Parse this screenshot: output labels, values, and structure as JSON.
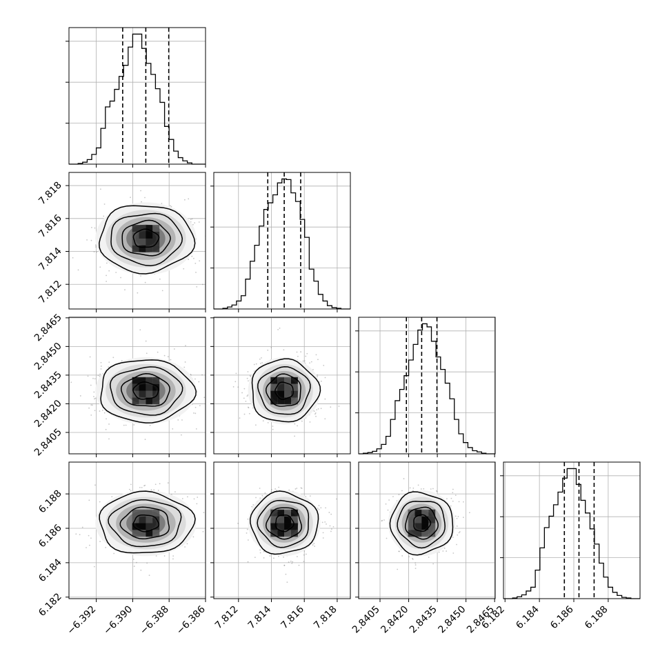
{
  "chart_data": {
    "type": "corner",
    "grid": true,
    "colors": {
      "line": "#000000",
      "grid": "#b0b0b0",
      "scatter": "#7f7f7f"
    },
    "params": [
      {
        "key": "p0",
        "range": [
          -6.3935,
          -6.386
        ],
        "ticks": [
          -6.392,
          -6.39,
          -6.388,
          -6.386
        ],
        "tick_labels": [
          "−6.392",
          "−6.390",
          "−6.388",
          "−6.386"
        ],
        "quantiles": [
          -6.39055,
          -6.38928,
          -6.38802
        ],
        "hist": {
          "edges": [
            -6.3935,
            -6.39325,
            -6.393,
            -6.39275,
            -6.3925,
            -6.39225,
            -6.392,
            -6.39175,
            -6.3915,
            -6.39125,
            -6.391,
            -6.39075,
            -6.3905,
            -6.39025,
            -6.39,
            -6.38975,
            -6.3895,
            -6.38925,
            -6.389,
            -6.38875,
            -6.3885,
            -6.38825,
            -6.388,
            -6.38775,
            -6.3875,
            -6.38725,
            -6.387,
            -6.38675,
            -6.3865,
            -6.38625,
            -6.386
          ],
          "counts": [
            0,
            0,
            1,
            3,
            7,
            15,
            25,
            55,
            88,
            97,
            115,
            135,
            152,
            180,
            200,
            200,
            178,
            155,
            138,
            116,
            95,
            58,
            38,
            20,
            10,
            5,
            2,
            0,
            0,
            0
          ]
        }
      },
      {
        "key": "p1",
        "range": [
          7.8105,
          7.8188
        ],
        "ticks": [
          7.812,
          7.814,
          7.816,
          7.818
        ],
        "tick_labels": [
          "7.812",
          "7.814",
          "7.816",
          "7.818"
        ],
        "quantiles": [
          7.81378,
          7.81478,
          7.81578
        ],
        "hist": {
          "edges": [
            7.8105,
            7.81078,
            7.81105,
            7.81133,
            7.8116,
            7.81188,
            7.81216,
            7.81243,
            7.81271,
            7.81298,
            7.81326,
            7.81354,
            7.81381,
            7.81409,
            7.81437,
            7.81464,
            7.81492,
            7.81519,
            7.81547,
            7.81575,
            7.81602,
            7.8163,
            7.81658,
            7.81685,
            7.81713,
            7.8174,
            7.81768,
            7.81796,
            7.81823,
            7.81851,
            7.8188
          ],
          "counts": [
            0,
            0,
            1,
            3,
            6,
            12,
            20,
            45,
            72,
            96,
            125,
            150,
            160,
            172,
            190,
            196,
            195,
            175,
            162,
            135,
            108,
            60,
            42,
            22,
            12,
            5,
            2,
            1,
            0,
            0
          ]
        }
      },
      {
        "key": "p2",
        "range": [
          2.83938,
          2.84653
        ],
        "ticks": [
          2.8405,
          2.842,
          2.8435,
          2.845,
          2.8465
        ],
        "tick_labels": [
          "2.8405",
          "2.8420",
          "2.8435",
          "2.8450",
          "2.8465"
        ],
        "quantiles": [
          2.84188,
          2.84268,
          2.84348
        ],
        "hist": {
          "edges": [
            2.83938,
            2.83962,
            2.83986,
            2.8401,
            2.84033,
            2.84057,
            2.84081,
            2.84105,
            2.84129,
            2.84153,
            2.84176,
            2.842,
            2.84224,
            2.84248,
            2.84272,
            2.84296,
            2.84319,
            2.84343,
            2.84367,
            2.84391,
            2.84415,
            2.84439,
            2.84462,
            2.84486,
            2.8451,
            2.84534,
            2.84558,
            2.84582,
            2.84605,
            2.84629,
            2.84653
          ],
          "counts": [
            0,
            1,
            2,
            4,
            8,
            15,
            28,
            55,
            85,
            103,
            125,
            150,
            175,
            198,
            208,
            203,
            180,
            155,
            135,
            113,
            88,
            55,
            32,
            18,
            10,
            5,
            3,
            1,
            0,
            0
          ]
        }
      },
      {
        "key": "p3",
        "range": [
          6.18191,
          6.18985
        ],
        "ticks": [
          6.182,
          6.184,
          6.186,
          6.188
        ],
        "tick_labels": [
          "6.182",
          "6.184",
          "6.186",
          "6.188"
        ],
        "quantiles": [
          6.18545,
          6.1863,
          6.18718
        ],
        "hist": {
          "edges": [
            6.18191,
            6.18217,
            6.18244,
            6.1827,
            6.18297,
            6.18323,
            6.1835,
            6.18376,
            6.18403,
            6.18429,
            6.18456,
            6.18482,
            6.18508,
            6.18535,
            6.18561,
            6.18588,
            6.18614,
            6.18641,
            6.18667,
            6.18694,
            6.1872,
            6.18747,
            6.18773,
            6.18799,
            6.18826,
            6.18852,
            6.18879,
            6.18905,
            6.18932,
            6.18958,
            6.18985
          ],
          "counts": [
            0,
            0,
            1,
            3,
            6,
            12,
            18,
            45,
            80,
            112,
            130,
            148,
            168,
            190,
            205,
            205,
            180,
            155,
            135,
            110,
            86,
            56,
            34,
            18,
            10,
            5,
            2,
            1,
            0,
            0
          ]
        }
      }
    ],
    "pairs": [
      {
        "row": 1,
        "col": 0,
        "center": [
          -6.38928,
          7.81478
        ],
        "spread": [
          0.00126,
          0.001
        ]
      },
      {
        "row": 2,
        "col": 0,
        "center": [
          -6.38928,
          2.84268
        ],
        "spread": [
          0.00126,
          0.0008
        ]
      },
      {
        "row": 2,
        "col": 1,
        "center": [
          7.81478,
          2.84268
        ],
        "spread": [
          0.001,
          0.0008
        ]
      },
      {
        "row": 3,
        "col": 0,
        "center": [
          -6.38928,
          6.1863
        ],
        "spread": [
          0.00126,
          0.00087
        ]
      },
      {
        "row": 3,
        "col": 1,
        "center": [
          7.81478,
          6.1863
        ],
        "spread": [
          0.001,
          0.00087
        ]
      },
      {
        "row": 3,
        "col": 2,
        "center": [
          2.84268,
          6.1863
        ],
        "spread": [
          0.0008,
          0.00087
        ]
      }
    ]
  }
}
